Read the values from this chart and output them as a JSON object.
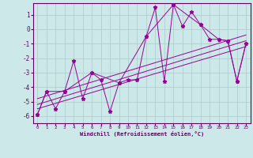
{
  "xlabel": "Windchill (Refroidissement éolien,°C)",
  "bg_color": "#cce8e8",
  "line_color": "#990099",
  "grid_color": "#aacccc",
  "xlim": [
    -0.5,
    23.5
  ],
  "ylim": [
    -6.5,
    1.8
  ],
  "yticks": [
    1,
    0,
    -1,
    -2,
    -3,
    -4,
    -5,
    -6
  ],
  "xticks": [
    0,
    1,
    2,
    3,
    4,
    5,
    6,
    7,
    8,
    9,
    10,
    11,
    12,
    13,
    14,
    15,
    16,
    17,
    18,
    19,
    20,
    21,
    22,
    23
  ],
  "series0_x": [
    0,
    1,
    2,
    3,
    4,
    5,
    6,
    7,
    8,
    9,
    10,
    11,
    12,
    13,
    14,
    15,
    16,
    17,
    18,
    19,
    20,
    21,
    22,
    23
  ],
  "series0_y": [
    -5.9,
    -4.3,
    -5.5,
    -4.3,
    -2.2,
    -4.8,
    -3.0,
    -3.5,
    -5.7,
    -3.7,
    -3.5,
    -3.5,
    -0.5,
    1.5,
    -3.6,
    1.7,
    0.2,
    1.2,
    0.3,
    -0.7,
    -0.7,
    -0.8,
    -3.6,
    -1.0
  ],
  "series1_x": [
    0,
    1,
    3,
    6,
    9,
    12,
    15,
    18,
    20,
    21,
    22,
    23
  ],
  "series1_y": [
    -5.9,
    -4.3,
    -4.3,
    -3.0,
    -3.7,
    -0.5,
    1.7,
    0.3,
    -0.7,
    -0.8,
    -3.6,
    -1.0
  ],
  "trend_lines": [
    {
      "x": [
        0,
        23
      ],
      "y": [
        -5.2,
        -0.8
      ]
    },
    {
      "x": [
        0,
        23
      ],
      "y": [
        -5.5,
        -1.2
      ]
    },
    {
      "x": [
        0,
        23
      ],
      "y": [
        -4.8,
        -0.4
      ]
    }
  ]
}
